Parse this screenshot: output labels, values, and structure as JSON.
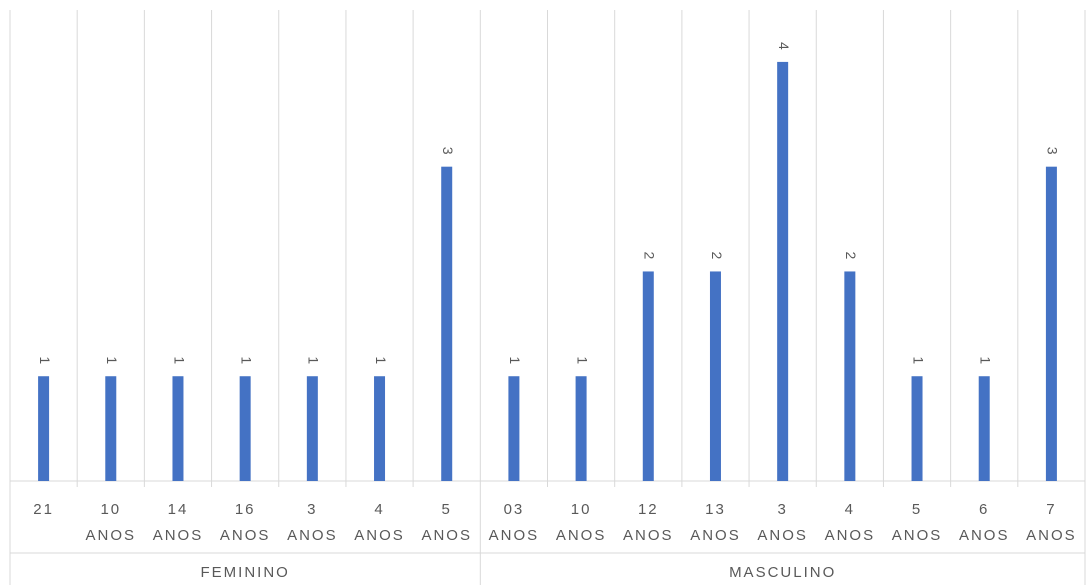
{
  "chart_data": {
    "type": "bar",
    "title": "",
    "xlabel": "",
    "ylabel": "",
    "ylim": [
      0,
      4.4
    ],
    "grid": "vertical",
    "legend": "none",
    "colors": {
      "bar": "#4472C4",
      "grid": "#D9D9D9",
      "text": "#595959"
    },
    "groups": [
      {
        "name": "FEMININO",
        "categories": [
          "21",
          "10 ANOS",
          "14 ANOS",
          "16 ANOS",
          "3 ANOS",
          "4 ANOS",
          "5 ANOS"
        ],
        "values": [
          1,
          1,
          1,
          1,
          1,
          1,
          3
        ]
      },
      {
        "name": "MASCULINO",
        "categories": [
          "03 ANOS",
          "10 ANOS",
          "12 ANOS",
          "13 ANOS",
          "3 ANOS",
          "4 ANOS",
          "5 ANOS",
          "6 ANOS",
          "7 ANOS"
        ],
        "values": [
          1,
          1,
          2,
          2,
          4,
          2,
          1,
          1,
          3
        ]
      }
    ]
  }
}
